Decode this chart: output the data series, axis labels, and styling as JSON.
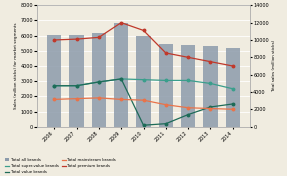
{
  "years": [
    2006,
    2007,
    2008,
    2009,
    2010,
    2011,
    2012,
    2013,
    2014
  ],
  "bar_values": [
    6050,
    6050,
    6200,
    6800,
    6000,
    5450,
    5380,
    5300,
    5200
  ],
  "total_super_value": [
    2700,
    2700,
    2950,
    3150,
    3100,
    3050,
    3050,
    2850,
    2500
  ],
  "total_value": [
    2700,
    2700,
    2950,
    3150,
    100,
    200,
    800,
    1300,
    1500
  ],
  "total_mainstream": [
    1800,
    1850,
    1900,
    1800,
    1750,
    1450,
    1250,
    1200,
    1150
  ],
  "total_premium": [
    10000,
    10100,
    10300,
    12000,
    11100,
    8500,
    8000,
    7500,
    7000
  ],
  "bar_color": "#8c9bab",
  "super_value_color": "#3a9e8c",
  "value_color": "#1e6b58",
  "mainstream_color": "#e8734a",
  "premium_color": "#c0392b",
  "ylabel_left": "Sales (million sticks) for market segments",
  "ylabel_right": "Total sales (million sticks)",
  "ylim_left": [
    0,
    8000
  ],
  "ylim_right": [
    0,
    14000
  ],
  "yticks_left": [
    0,
    1000,
    2000,
    3000,
    4000,
    5000,
    6000,
    7000,
    8000
  ],
  "yticks_right": [
    0,
    2000,
    4000,
    6000,
    8000,
    10000,
    12000,
    14000
  ],
  "background_color": "#f0ece0"
}
